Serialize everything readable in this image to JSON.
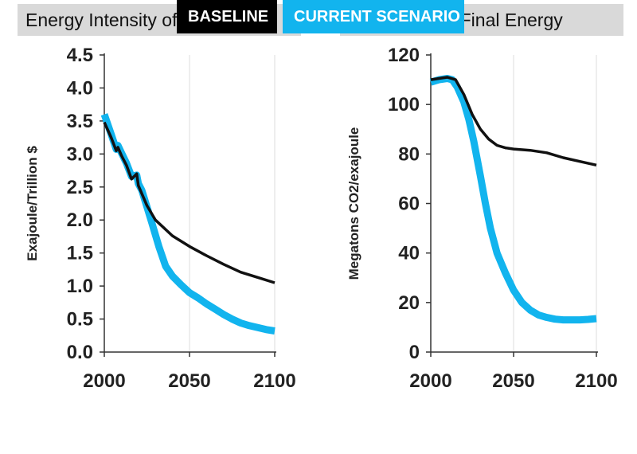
{
  "colors": {
    "baseline": "#111111",
    "current_scenario": "#12b4ee",
    "grid": "#dddddd",
    "title_bg": "#d9d9d9"
  },
  "legend": {
    "baseline_label": "BASELINE",
    "current_label": "CURRENT SCENARIO"
  },
  "chart_data": [
    {
      "type": "line",
      "title": "Energy Intensity of GDP",
      "xlabel": "",
      "ylabel": "Exajoule/Trillion $",
      "xlim": [
        2000,
        2100
      ],
      "ylim": [
        0,
        4.5
      ],
      "xticks": [
        "2000",
        "2050",
        "2100"
      ],
      "yticks": [
        "0.0",
        "0.5",
        "1.0",
        "1.5",
        "2.0",
        "2.5",
        "3.0",
        "3.5",
        "4.0",
        "4.5"
      ],
      "grid": "vertical",
      "series": [
        {
          "name": "BASELINE",
          "x": [
            2000,
            2004,
            2007,
            2008,
            2010,
            2013,
            2016,
            2019,
            2020,
            2022,
            2025,
            2030,
            2040,
            2050,
            2060,
            2070,
            2080,
            2090,
            2100
          ],
          "y": [
            3.48,
            3.25,
            3.05,
            3.1,
            2.98,
            2.83,
            2.62,
            2.7,
            2.52,
            2.4,
            2.22,
            2.0,
            1.76,
            1.6,
            1.46,
            1.33,
            1.21,
            1.13,
            1.05
          ]
        },
        {
          "name": "CURRENT SCENARIO",
          "x": [
            2000,
            2004,
            2007,
            2008,
            2010,
            2013,
            2016,
            2019,
            2020,
            2022,
            2025,
            2028,
            2032,
            2036,
            2040,
            2045,
            2050,
            2055,
            2060,
            2065,
            2070,
            2075,
            2080,
            2085,
            2090,
            2095,
            2100
          ],
          "y": [
            3.6,
            3.3,
            3.07,
            3.13,
            3.02,
            2.86,
            2.66,
            2.68,
            2.55,
            2.45,
            2.2,
            1.95,
            1.6,
            1.3,
            1.15,
            1.02,
            0.9,
            0.82,
            0.73,
            0.65,
            0.57,
            0.5,
            0.44,
            0.4,
            0.37,
            0.34,
            0.32
          ]
        }
      ]
    },
    {
      "type": "line",
      "title": "C Intensity of Final Energy",
      "xlabel": "",
      "ylabel": "Megatons CO2/exajoule",
      "xlim": [
        2000,
        2100
      ],
      "ylim": [
        0,
        120
      ],
      "xticks": [
        "2000",
        "2050",
        "2100"
      ],
      "yticks": [
        "0",
        "20",
        "40",
        "60",
        "80",
        "100",
        "120"
      ],
      "grid": "vertical",
      "series": [
        {
          "name": "BASELINE",
          "x": [
            2000,
            2005,
            2010,
            2015,
            2020,
            2025,
            2030,
            2035,
            2040,
            2045,
            2050,
            2060,
            2070,
            2080,
            2090,
            2100
          ],
          "y": [
            110,
            110.5,
            111,
            110,
            104,
            96,
            90,
            86,
            83.5,
            82.5,
            82,
            81.5,
            80.5,
            78.5,
            77,
            75.5
          ]
        },
        {
          "name": "CURRENT SCENARIO",
          "x": [
            2000,
            2005,
            2010,
            2013,
            2016,
            2020,
            2023,
            2026,
            2030,
            2033,
            2036,
            2040,
            2045,
            2050,
            2055,
            2060,
            2065,
            2070,
            2075,
            2080,
            2085,
            2090,
            2095,
            2100
          ],
          "y": [
            109,
            110,
            110.5,
            110,
            107,
            101,
            94,
            85,
            71,
            60,
            50,
            40,
            32,
            25,
            20,
            17,
            15,
            14,
            13.3,
            13,
            13,
            13,
            13.2,
            13.5
          ]
        }
      ]
    }
  ]
}
